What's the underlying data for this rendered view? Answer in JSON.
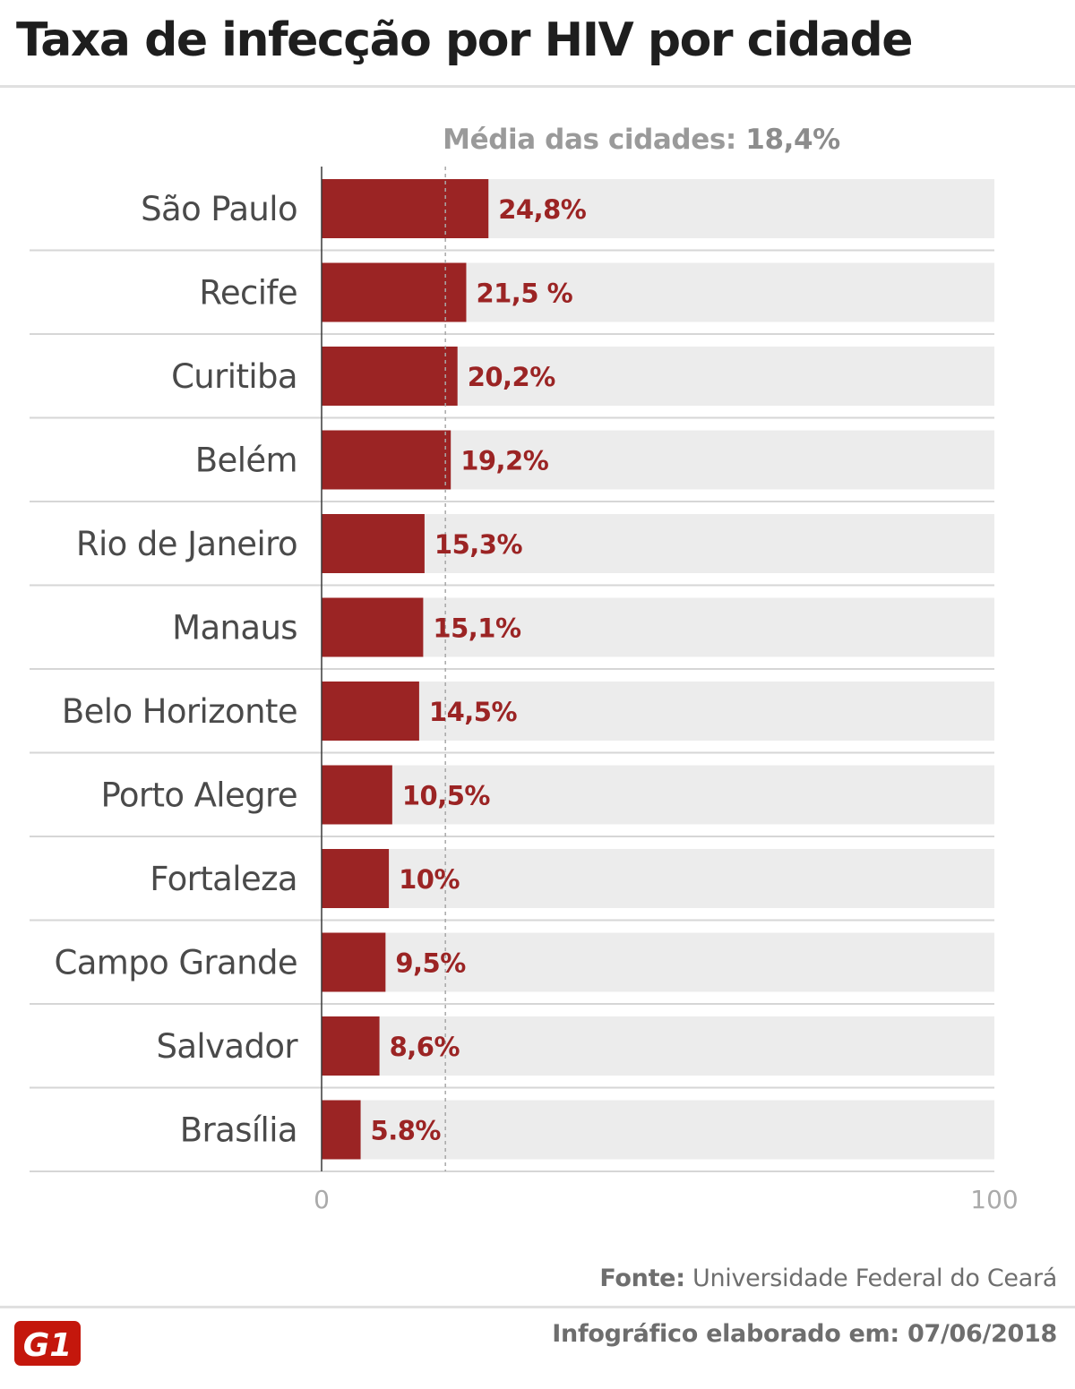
{
  "title": "Taxa de infecção por HIV por cidade",
  "chart_data": {
    "type": "bar",
    "orientation": "horizontal",
    "title": "Taxa de infecção por HIV por cidade",
    "categories": [
      "São Paulo",
      "Recife",
      "Curitiba",
      "Belém",
      "Rio de Janeiro",
      "Manaus",
      "Belo Horizonte",
      "Porto Alegre",
      "Fortaleza",
      "Campo Grande",
      "Salvador",
      "Brasília"
    ],
    "values": [
      24.8,
      21.5,
      20.2,
      19.2,
      15.3,
      15.1,
      14.5,
      10.5,
      10,
      9.5,
      8.6,
      5.8
    ],
    "value_labels": [
      "24,8%",
      "21,5 %",
      "20,2%",
      "19,2%",
      "15,3%",
      "15,1%",
      "14,5%",
      "10,5%",
      "10%",
      "9,5%",
      "8,6%",
      "5.8%"
    ],
    "xlim": [
      0,
      100
    ],
    "x_ticks": [
      "0",
      "100"
    ],
    "average": {
      "value": 18.4,
      "label": "Média das cidades:",
      "value_label": "18,4%"
    },
    "bar_color": "#9b2424",
    "track_color": "#ececec",
    "grid": false
  },
  "footer": {
    "source_label": "Fonte:",
    "source_text": "Universidade Federal do Ceará",
    "credit": "Infográfico elaborado em: 07/06/2018",
    "logo_text": "G1",
    "logo_color": "#c4170c"
  }
}
